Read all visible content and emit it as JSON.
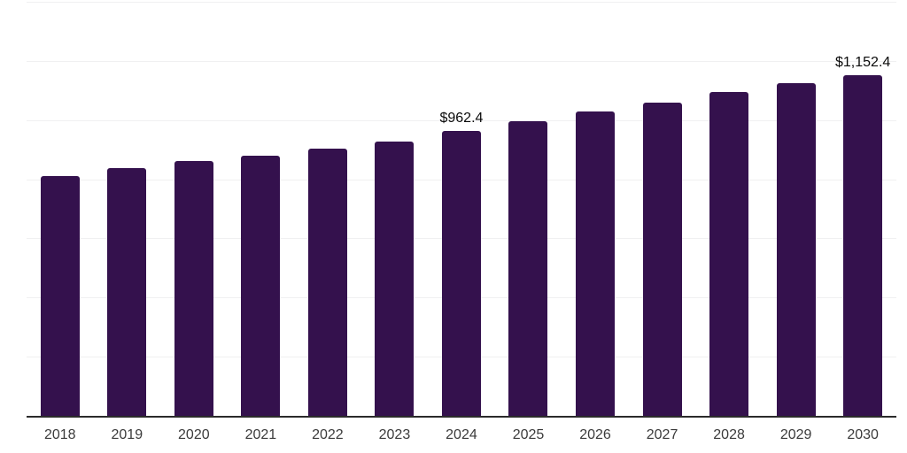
{
  "chart_data": {
    "type": "bar",
    "title": "",
    "xlabel": "",
    "ylabel": "",
    "categories": [
      "2018",
      "2019",
      "2020",
      "2021",
      "2022",
      "2023",
      "2024",
      "2025",
      "2026",
      "2027",
      "2028",
      "2029",
      "2030"
    ],
    "values": [
      812,
      837,
      862,
      880,
      904,
      928,
      962.4,
      995,
      1029,
      1060,
      1094,
      1124,
      1152.4
    ],
    "point_labels": [
      "",
      "",
      "",
      "",
      "",
      "",
      "$962.4",
      "",
      "",
      "",
      "",
      "",
      "$1,152.4"
    ],
    "ylim": [
      0,
      1400
    ],
    "y_gridlines": [
      200,
      400,
      600,
      800,
      1000,
      1200,
      1400
    ],
    "grid": "horizontal",
    "legend": "none",
    "y_axis_labels_visible": false,
    "bar_color": "#34114d",
    "gridline_color": "#f0f0f1",
    "axis_line_color": "#2b2b2b",
    "tick_label_color": "#3b3b3b",
    "point_label_color": "#0a0a0a",
    "background_color": "#ffffff"
  }
}
